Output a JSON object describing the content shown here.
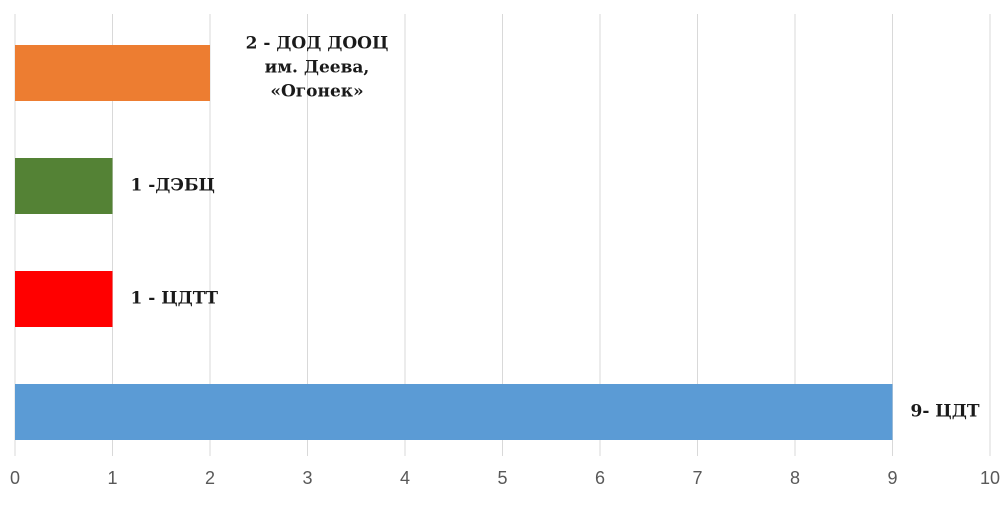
{
  "chart_data": {
    "type": "bar",
    "orientation": "horizontal",
    "title": "",
    "xlabel": "",
    "ylabel": "",
    "xlim": [
      0,
      10
    ],
    "x_ticks": [
      0,
      1,
      2,
      3,
      4,
      5,
      6,
      7,
      8,
      9,
      10
    ],
    "grid": true,
    "legend": "none",
    "bars": [
      {
        "value": 9,
        "color": "#5b9bd5",
        "label_lines": [
          "9- ЦДТ"
        ]
      },
      {
        "value": 1,
        "color": "#ff0000",
        "label_lines": [
          "1 - ЦДТТ"
        ]
      },
      {
        "value": 1,
        "color": "#548235",
        "label_lines": [
          "1 -ДЭБЦ"
        ]
      },
      {
        "value": 2,
        "color": "#ed7d31",
        "label_lines": [
          "2 - ДОД ДООЦ",
          "им. Деева,",
          "«Огонек»"
        ]
      }
    ]
  }
}
